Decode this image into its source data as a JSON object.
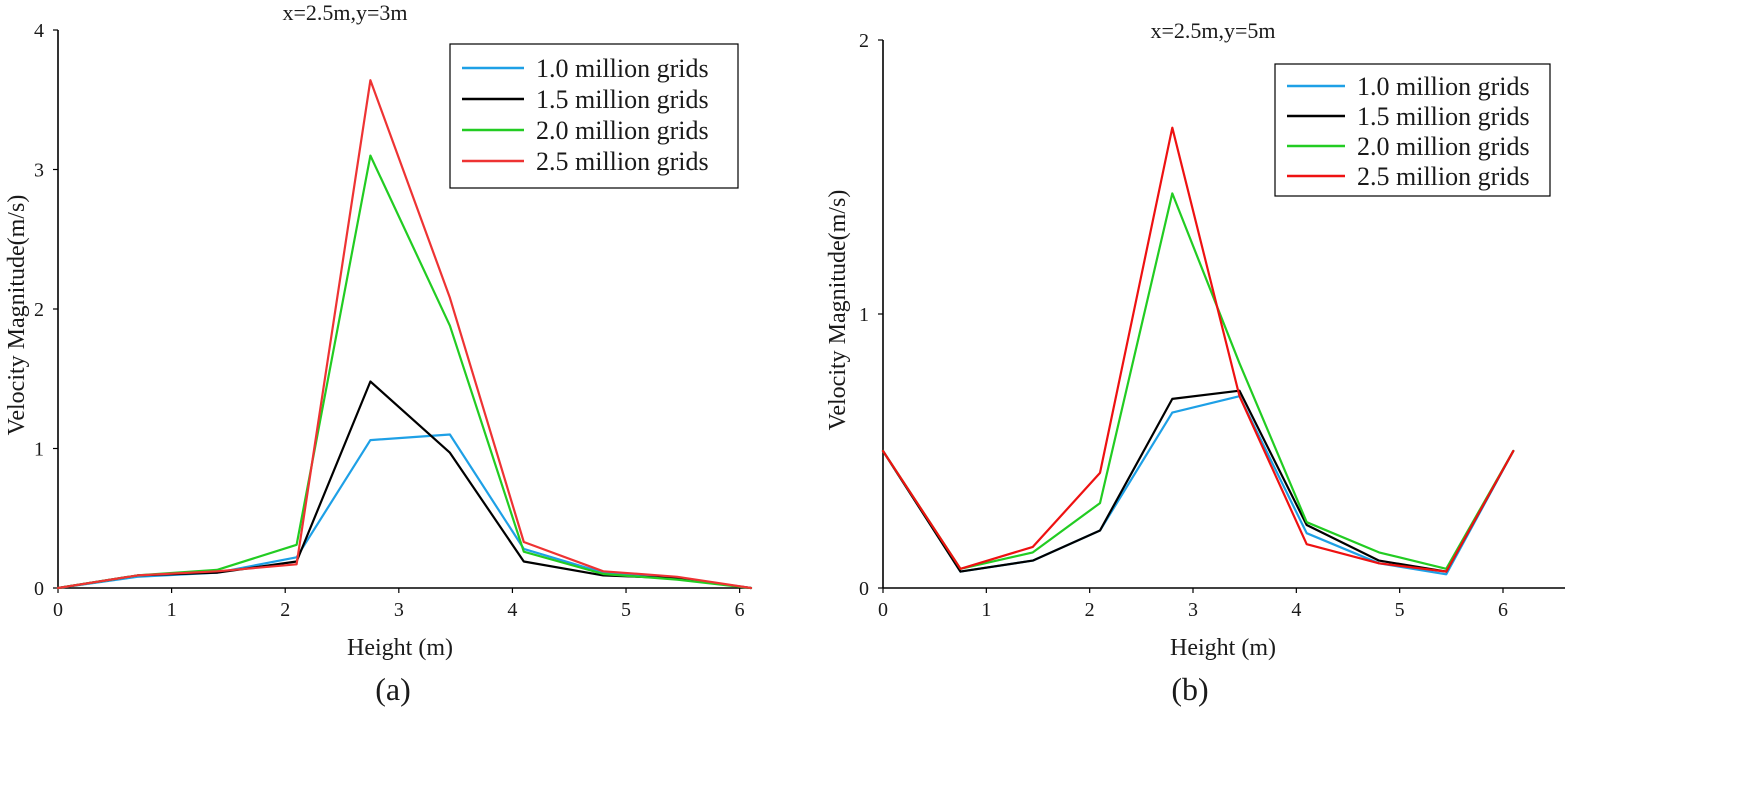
{
  "chart_data": [
    {
      "type": "line",
      "title": "x=2.5m,y=3m",
      "panel_label": "(a)",
      "xlabel": "Height (m)",
      "ylabel": "Velocity Magnitude(m/s)",
      "xlim": [
        0,
        6.1
      ],
      "ylim": [
        0,
        4
      ],
      "xticks": [
        0,
        1,
        2,
        3,
        4,
        5,
        6
      ],
      "yticks": [
        0,
        1,
        2,
        3,
        4
      ],
      "x": [
        0,
        0.7,
        1.4,
        2.1,
        2.75,
        3.45,
        4.1,
        4.8,
        5.45,
        6.1
      ],
      "series": [
        {
          "name": "1.0 million grids",
          "color": "#1ea0e6",
          "values": [
            0,
            0.08,
            0.11,
            0.22,
            1.06,
            1.1,
            0.28,
            0.11,
            0.07,
            0
          ]
        },
        {
          "name": "1.5 million grids",
          "color": "#000000",
          "values": [
            0,
            0.09,
            0.11,
            0.19,
            1.48,
            0.97,
            0.19,
            0.09,
            0.07,
            0
          ]
        },
        {
          "name": "2.0 million grids",
          "color": "#22cc22",
          "values": [
            0,
            0.09,
            0.13,
            0.31,
            3.1,
            1.88,
            0.26,
            0.1,
            0.06,
            0
          ]
        },
        {
          "name": "2.5 million grids",
          "color": "#ee3333",
          "values": [
            0,
            0.09,
            0.12,
            0.17,
            3.64,
            2.08,
            0.33,
            0.12,
            0.08,
            0
          ]
        }
      ]
    },
    {
      "type": "line",
      "title": "x=2.5m,y=5m",
      "panel_label": "(b)",
      "xlabel": "Height (m)",
      "ylabel": "Velocity Magnitude(m/s)",
      "xlim": [
        0,
        6.6
      ],
      "ylim": [
        0,
        2
      ],
      "xticks": [
        0,
        1,
        2,
        3,
        4,
        5,
        6
      ],
      "yticks": [
        0,
        1,
        2
      ],
      "x": [
        0,
        0.75,
        1.45,
        2.1,
        2.8,
        3.45,
        4.1,
        4.8,
        5.45,
        6.1
      ],
      "series": [
        {
          "name": "1.0 million grids",
          "color": "#1ea0e6",
          "values": [
            0.5,
            0.06,
            0.1,
            0.21,
            0.64,
            0.7,
            0.2,
            0.09,
            0.05,
            0.5
          ]
        },
        {
          "name": "1.5 million grids",
          "color": "#000000",
          "values": [
            0.5,
            0.06,
            0.1,
            0.21,
            0.69,
            0.72,
            0.23,
            0.1,
            0.06,
            0.5
          ]
        },
        {
          "name": "2.0 million grids",
          "color": "#22cc22",
          "values": [
            0.5,
            0.07,
            0.13,
            0.31,
            1.44,
            0.82,
            0.24,
            0.13,
            0.07,
            0.5
          ]
        },
        {
          "name": "2.5 million grids",
          "color": "#ee1111",
          "values": [
            0.5,
            0.07,
            0.15,
            0.42,
            1.68,
            0.7,
            0.16,
            0.09,
            0.06,
            0.5
          ]
        }
      ]
    }
  ]
}
